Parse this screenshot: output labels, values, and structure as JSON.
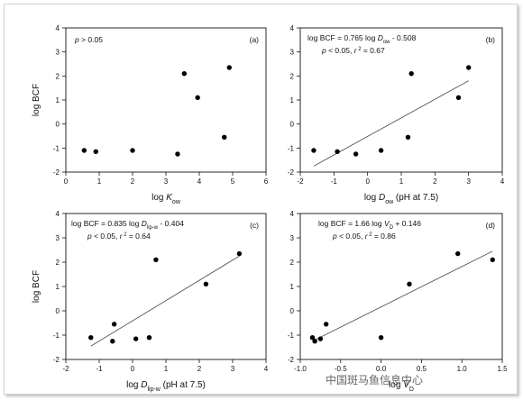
{
  "chart_data": [
    {
      "id": "a",
      "type": "scatter",
      "panel_label": "(a)",
      "annotation": "p > 0.05",
      "xlabel": "log K_ow",
      "ylabel": "log BCF",
      "xlim": [
        0,
        6
      ],
      "ylim": [
        -2,
        4
      ],
      "x_ticks": [
        0,
        1,
        2,
        3,
        4,
        5,
        6
      ],
      "y_ticks": [
        -2,
        -1,
        0,
        1,
        2,
        3,
        4
      ],
      "x_tick_labels": [
        "0",
        "1",
        "2",
        "3",
        "4",
        "5",
        "6"
      ],
      "y_tick_labels": [
        "-2",
        "-1",
        "0",
        "1",
        "2",
        "3",
        "4"
      ],
      "points": [
        {
          "x": 0.55,
          "y": -1.1
        },
        {
          "x": 0.9,
          "y": -1.15
        },
        {
          "x": 2.0,
          "y": -1.1
        },
        {
          "x": 3.35,
          "y": -1.25
        },
        {
          "x": 3.55,
          "y": 2.1
        },
        {
          "x": 3.95,
          "y": 1.1
        },
        {
          "x": 4.75,
          "y": -0.55
        },
        {
          "x": 4.9,
          "y": 2.35
        }
      ],
      "regression": null
    },
    {
      "id": "b",
      "type": "scatter",
      "panel_label": "(b)",
      "equation": "log BCF = 0.765 log D_ow - 0.508",
      "stats": "p < 0.05, r^2 = 0.67",
      "xlabel": "log D_ow (pH at 7.5)",
      "ylabel": "",
      "xlim": [
        -2,
        4
      ],
      "ylim": [
        -2,
        4
      ],
      "x_ticks": [
        -2,
        -1,
        0,
        1,
        2,
        3,
        4
      ],
      "y_ticks": [
        -2,
        -1,
        0,
        1,
        2,
        3,
        4
      ],
      "x_tick_labels": [
        "-2",
        "-1",
        "0",
        "1",
        "2",
        "3",
        "4"
      ],
      "y_tick_labels": [
        "-2",
        "-1",
        "0",
        "1",
        "2",
        "3",
        "4"
      ],
      "points": [
        {
          "x": -1.6,
          "y": -1.1
        },
        {
          "x": -0.9,
          "y": -1.15
        },
        {
          "x": -0.35,
          "y": -1.25
        },
        {
          "x": 0.4,
          "y": -1.1
        },
        {
          "x": 1.2,
          "y": -0.55
        },
        {
          "x": 1.3,
          "y": 2.1
        },
        {
          "x": 2.7,
          "y": 1.1
        },
        {
          "x": 3.0,
          "y": 2.35
        }
      ],
      "regression": {
        "x": [
          -1.6,
          3.0
        ],
        "y": [
          -1.75,
          1.8
        ]
      }
    },
    {
      "id": "c",
      "type": "scatter",
      "panel_label": "(c)",
      "equation": "log BCF = 0.835 log D_lip-w - 0.404",
      "stats": "p < 0.05, r^2 = 0.64",
      "xlabel": "log D_lip-w (pH at 7.5)",
      "ylabel": "log BCF",
      "xlim": [
        -2,
        4
      ],
      "ylim": [
        -2,
        4
      ],
      "x_ticks": [
        -2,
        -1,
        0,
        1,
        2,
        3,
        4
      ],
      "y_ticks": [
        -2,
        -1,
        0,
        1,
        2,
        3,
        4
      ],
      "x_tick_labels": [
        "-2",
        "-1",
        "0",
        "1",
        "2",
        "3",
        "4"
      ],
      "y_tick_labels": [
        "-2",
        "-1",
        "0",
        "1",
        "2",
        "3",
        "4"
      ],
      "points": [
        {
          "x": -1.25,
          "y": -1.1
        },
        {
          "x": -0.6,
          "y": -1.25
        },
        {
          "x": -0.55,
          "y": -0.55
        },
        {
          "x": 0.1,
          "y": -1.15
        },
        {
          "x": 0.5,
          "y": -1.1
        },
        {
          "x": 0.7,
          "y": 2.1
        },
        {
          "x": 2.2,
          "y": 1.1
        },
        {
          "x": 3.2,
          "y": 2.35
        }
      ],
      "regression": {
        "x": [
          -1.25,
          3.2
        ],
        "y": [
          -1.45,
          2.25
        ]
      }
    },
    {
      "id": "d",
      "type": "scatter",
      "panel_label": "(d)",
      "equation": "log BCF = 1.66 log V_D + 0.146",
      "stats": "p < 0.05, r^2 = 0.86",
      "xlabel": "log V_D",
      "ylabel": "",
      "xlim": [
        -1.0,
        1.5
      ],
      "ylim": [
        -2,
        4
      ],
      "x_ticks": [
        -1.0,
        -0.5,
        0.0,
        0.5,
        1.0,
        1.5
      ],
      "y_ticks": [
        -2,
        -1,
        0,
        1,
        2,
        3,
        4
      ],
      "x_tick_labels": [
        "-1.0",
        "-0.5",
        "0.0",
        "0.5",
        "1.0",
        "1.5"
      ],
      "y_tick_labels": [
        "-2",
        "-1",
        "0",
        "1",
        "2",
        "3",
        "4"
      ],
      "points": [
        {
          "x": -0.85,
          "y": -1.1
        },
        {
          "x": -0.82,
          "y": -1.25
        },
        {
          "x": -0.75,
          "y": -1.15
        },
        {
          "x": -0.68,
          "y": -0.55
        },
        {
          "x": 0.0,
          "y": -1.1
        },
        {
          "x": 0.35,
          "y": 1.1
        },
        {
          "x": 0.95,
          "y": 2.35
        },
        {
          "x": 1.38,
          "y": 2.1
        }
      ],
      "regression": {
        "x": [
          -0.85,
          1.38
        ],
        "y": [
          -1.25,
          2.45
        ]
      }
    }
  ],
  "watermark": "中国斑马鱼信息中心"
}
